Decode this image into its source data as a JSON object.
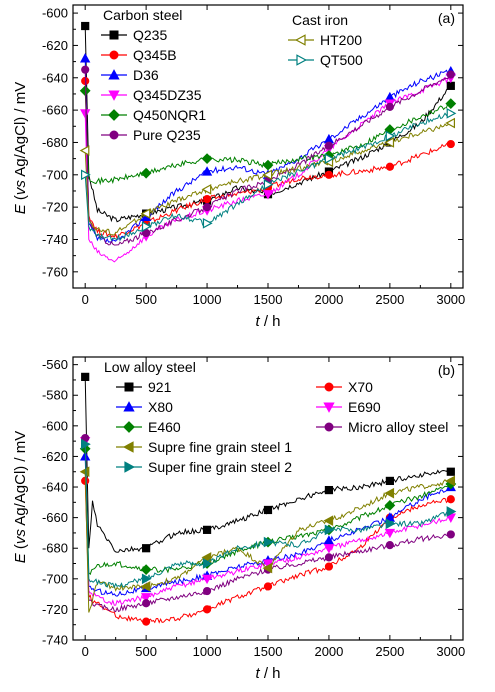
{
  "chart_data": [
    {
      "type": "line",
      "panel_label": "(a)",
      "xlabel_italic": "t",
      "xlabel_unit": " / h",
      "ylabel_italic": "E",
      "ylabel_paren_italic": "vs",
      "ylabel_rest": " Ag/AgCl) / mV",
      "ylabel_open": " (",
      "xlim": [
        -100,
        3100
      ],
      "ylim": [
        -770,
        -595
      ],
      "xticks": [
        0,
        500,
        1000,
        1500,
        2000,
        2500,
        3000
      ],
      "xtick_labels": [
        "0",
        "500",
        "1000",
        "1500",
        "2000",
        "2500",
        "3000"
      ],
      "yticks": [
        -760,
        -740,
        -720,
        -700,
        -680,
        -660,
        -640,
        -620,
        -600
      ],
      "ytick_labels": [
        "-760",
        "-740",
        "-720",
        "-700",
        "-680",
        "-660",
        "-640",
        "-620",
        "-600"
      ],
      "legend_groups": [
        {
          "title": "Carbon steel",
          "position": "top-left"
        },
        {
          "title": "Cast iron",
          "position": "top-center"
        }
      ],
      "series": [
        {
          "name": "Q235",
          "color": "#000000",
          "marker": "square",
          "x": [
            0,
            30,
            100,
            250,
            500,
            750,
            1000,
            1250,
            1500,
            1750,
            2000,
            2250,
            2500,
            2750,
            3000
          ],
          "values": [
            -608,
            -700,
            -722,
            -728,
            -724,
            -720,
            -716,
            -708,
            -712,
            -705,
            -698,
            -690,
            -680,
            -668,
            -645
          ]
        },
        {
          "name": "Q345B",
          "color": "#ff0000",
          "marker": "circle",
          "x": [
            0,
            30,
            100,
            250,
            500,
            750,
            1000,
            1250,
            1500,
            1750,
            2000,
            2250,
            2500,
            2750,
            3000
          ],
          "values": [
            -642,
            -725,
            -735,
            -738,
            -730,
            -722,
            -715,
            -712,
            -708,
            -702,
            -700,
            -698,
            -695,
            -688,
            -681
          ]
        },
        {
          "name": "D36",
          "color": "#0000ff",
          "marker": "triangle-up",
          "x": [
            0,
            30,
            100,
            250,
            500,
            750,
            1000,
            1250,
            1500,
            1750,
            2000,
            2250,
            2500,
            2750,
            3000
          ],
          "values": [
            -628,
            -730,
            -740,
            -742,
            -726,
            -710,
            -698,
            -695,
            -700,
            -690,
            -678,
            -665,
            -652,
            -642,
            -636
          ]
        },
        {
          "name": "Q345DZ35",
          "color": "#ff00ff",
          "marker": "triangle-down",
          "x": [
            0,
            30,
            100,
            250,
            500,
            750,
            1000,
            1250,
            1500,
            1750,
            2000,
            2250,
            2500,
            2750,
            3000
          ],
          "values": [
            -662,
            -740,
            -748,
            -754,
            -738,
            -728,
            -722,
            -716,
            -712,
            -700,
            -684,
            -670,
            -656,
            -648,
            -640
          ]
        },
        {
          "name": "Q450NQR1",
          "color": "#008000",
          "marker": "diamond",
          "x": [
            0,
            30,
            100,
            250,
            500,
            750,
            1000,
            1250,
            1500,
            1750,
            2000,
            2250,
            2500,
            2750,
            3000
          ],
          "values": [
            -648,
            -702,
            -704,
            -703,
            -699,
            -694,
            -690,
            -691,
            -694,
            -690,
            -688,
            -682,
            -672,
            -664,
            -656
          ]
        },
        {
          "name": "Pure Q235",
          "color": "#800080",
          "marker": "circle",
          "x": [
            0,
            30,
            100,
            250,
            500,
            750,
            1000,
            1250,
            1500,
            1750,
            2000,
            2250,
            2500,
            2750,
            3000
          ],
          "values": [
            -635,
            -728,
            -738,
            -744,
            -736,
            -728,
            -720,
            -710,
            -704,
            -694,
            -682,
            -670,
            -658,
            -648,
            -638
          ]
        },
        {
          "name": "HT200",
          "color": "#808000",
          "marker": "triangle-left-open",
          "x": [
            0,
            30,
            100,
            250,
            500,
            750,
            1000,
            1250,
            1500,
            1750,
            2000,
            2250,
            2500,
            2750,
            3000
          ],
          "values": [
            -685,
            -728,
            -734,
            -736,
            -724,
            -716,
            -709,
            -704,
            -700,
            -696,
            -692,
            -686,
            -680,
            -674,
            -668
          ]
        },
        {
          "name": "QT500",
          "color": "#008080",
          "marker": "triangle-right-open",
          "x": [
            0,
            30,
            100,
            250,
            500,
            750,
            1000,
            1250,
            1500,
            1750,
            2000,
            2250,
            2500,
            2750,
            3000
          ],
          "values": [
            -700,
            -732,
            -738,
            -740,
            -732,
            -725,
            -730,
            -718,
            -706,
            -698,
            -690,
            -684,
            -676,
            -668,
            -662
          ]
        }
      ]
    },
    {
      "type": "line",
      "panel_label": "(b)",
      "xlabel_italic": "t",
      "xlabel_unit": " / h",
      "ylabel_italic": "E",
      "ylabel_paren_italic": "vs",
      "ylabel_rest": " Ag/AgCl) / mV",
      "ylabel_open": " (",
      "xlim": [
        -100,
        3100
      ],
      "ylim": [
        -740,
        -555
      ],
      "xticks": [
        0,
        500,
        1000,
        1500,
        2000,
        2500,
        3000
      ],
      "xtick_labels": [
        "0",
        "500",
        "1000",
        "1500",
        "2000",
        "2500",
        "3000"
      ],
      "yticks": [
        -740,
        -720,
        -700,
        -680,
        -660,
        -640,
        -620,
        -600,
        -580,
        -560
      ],
      "ytick_labels": [
        "-740",
        "-720",
        "-700",
        "-680",
        "-660",
        "-640",
        "-620",
        "-600",
        "-580",
        "-560"
      ],
      "legend_groups": [
        {
          "title": "Low alloy steel",
          "position": "top-left"
        }
      ],
      "series": [
        {
          "name": "921",
          "color": "#000000",
          "marker": "square",
          "x": [
            0,
            30,
            60,
            100,
            250,
            500,
            750,
            1000,
            1250,
            1500,
            1750,
            2000,
            2250,
            2500,
            2750,
            3000
          ],
          "values": [
            -568,
            -680,
            -650,
            -665,
            -682,
            -680,
            -670,
            -668,
            -662,
            -655,
            -648,
            -642,
            -640,
            -636,
            -632,
            -630
          ]
        },
        {
          "name": "X70",
          "color": "#ff0000",
          "marker": "circle",
          "x": [
            0,
            30,
            100,
            250,
            500,
            750,
            1000,
            1250,
            1500,
            1750,
            2000,
            2250,
            2500,
            2750,
            3000
          ],
          "values": [
            -636,
            -712,
            -716,
            -724,
            -728,
            -726,
            -720,
            -712,
            -705,
            -698,
            -692,
            -680,
            -660,
            -652,
            -648
          ]
        },
        {
          "name": "X80",
          "color": "#0000ff",
          "marker": "triangle-up",
          "x": [
            0,
            30,
            100,
            250,
            500,
            750,
            1000,
            1250,
            1500,
            1750,
            2000,
            2250,
            2500,
            2750,
            3000
          ],
          "values": [
            -620,
            -705,
            -708,
            -710,
            -706,
            -702,
            -698,
            -692,
            -688,
            -684,
            -675,
            -668,
            -660,
            -648,
            -640
          ]
        },
        {
          "name": "E690",
          "color": "#ff00ff",
          "marker": "triangle-down",
          "x": [
            0,
            30,
            100,
            250,
            500,
            750,
            1000,
            1250,
            1500,
            1750,
            2000,
            2250,
            2500,
            2750,
            3000
          ],
          "values": [
            -610,
            -708,
            -712,
            -716,
            -712,
            -705,
            -700,
            -695,
            -690,
            -686,
            -680,
            -675,
            -670,
            -665,
            -660
          ]
        },
        {
          "name": "E460",
          "color": "#008000",
          "marker": "diamond",
          "x": [
            0,
            30,
            100,
            250,
            500,
            750,
            1000,
            1250,
            1500,
            1750,
            2000,
            2250,
            2500,
            2750,
            3000
          ],
          "values": [
            -615,
            -696,
            -692,
            -690,
            -694,
            -694,
            -690,
            -682,
            -676,
            -672,
            -668,
            -660,
            -652,
            -646,
            -638
          ]
        },
        {
          "name": "Micro alloy steel",
          "color": "#800080",
          "marker": "circle",
          "x": [
            0,
            30,
            100,
            250,
            500,
            750,
            1000,
            1250,
            1500,
            1750,
            2000,
            2250,
            2500,
            2750,
            3000
          ],
          "values": [
            -608,
            -714,
            -718,
            -720,
            -716,
            -712,
            -708,
            -700,
            -694,
            -690,
            -686,
            -682,
            -678,
            -674,
            -671
          ]
        },
        {
          "name": "Supre fine grain steel 1",
          "color": "#808000",
          "marker": "triangle-left",
          "x": [
            0,
            30,
            100,
            250,
            500,
            750,
            1000,
            1250,
            1500,
            1750,
            2000,
            2250,
            2500,
            2750,
            3000
          ],
          "values": [
            -630,
            -722,
            -702,
            -706,
            -705,
            -700,
            -686,
            -680,
            -693,
            -668,
            -662,
            -654,
            -644,
            -640,
            -636
          ]
        },
        {
          "name": "Super fine grain steel 2",
          "color": "#008080",
          "marker": "triangle-right",
          "x": [
            0,
            30,
            100,
            250,
            500,
            750,
            1000,
            1250,
            1500,
            1750,
            2000,
            2250,
            2500,
            2750,
            3000
          ],
          "values": [
            -612,
            -700,
            -702,
            -705,
            -700,
            -690,
            -690,
            -680,
            -676,
            -678,
            -668,
            -668,
            -664,
            -664,
            -656
          ]
        }
      ]
    }
  ]
}
